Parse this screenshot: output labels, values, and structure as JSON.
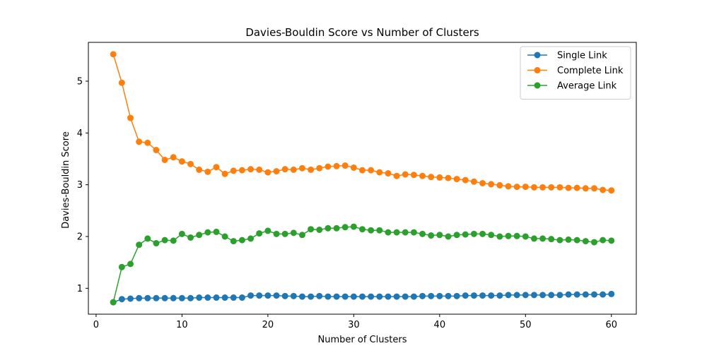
{
  "chart_data": {
    "type": "line",
    "title": "Davies-Bouldin Score vs Number of Clusters",
    "xlabel": "Number of Clusters",
    "ylabel": "Davies-Bouldin Score",
    "xlim": [
      -0.9,
      62.9
    ],
    "ylim": [
      0.5,
      5.75
    ],
    "xticks": [
      0,
      10,
      20,
      30,
      40,
      50,
      60
    ],
    "yticks": [
      1,
      2,
      3,
      4,
      5
    ],
    "grid": false,
    "legend_position": "top-right",
    "x": [
      2,
      3,
      4,
      5,
      6,
      7,
      8,
      9,
      10,
      11,
      12,
      13,
      14,
      15,
      16,
      17,
      18,
      19,
      20,
      21,
      22,
      23,
      24,
      25,
      26,
      27,
      28,
      29,
      30,
      31,
      32,
      33,
      34,
      35,
      36,
      37,
      38,
      39,
      40,
      41,
      42,
      43,
      44,
      45,
      46,
      47,
      48,
      49,
      50,
      51,
      52,
      53,
      54,
      55,
      56,
      57,
      58,
      59,
      60
    ],
    "series": [
      {
        "name": "Single Link",
        "color": "#1f77b4",
        "values": [
          0.73,
          0.79,
          0.8,
          0.81,
          0.81,
          0.81,
          0.81,
          0.81,
          0.81,
          0.81,
          0.82,
          0.82,
          0.82,
          0.82,
          0.82,
          0.82,
          0.86,
          0.86,
          0.86,
          0.86,
          0.85,
          0.85,
          0.84,
          0.84,
          0.85,
          0.84,
          0.84,
          0.84,
          0.84,
          0.84,
          0.84,
          0.84,
          0.84,
          0.84,
          0.84,
          0.84,
          0.85,
          0.85,
          0.85,
          0.85,
          0.85,
          0.86,
          0.86,
          0.86,
          0.86,
          0.86,
          0.87,
          0.87,
          0.87,
          0.87,
          0.87,
          0.87,
          0.87,
          0.88,
          0.88,
          0.88,
          0.88,
          0.88,
          0.89
        ]
      },
      {
        "name": "Complete Link",
        "color": "#ff7f0e",
        "values": [
          5.52,
          4.97,
          4.29,
          3.83,
          3.81,
          3.67,
          3.48,
          3.53,
          3.45,
          3.4,
          3.29,
          3.25,
          3.34,
          3.21,
          3.27,
          3.28,
          3.3,
          3.29,
          3.24,
          3.26,
          3.3,
          3.29,
          3.32,
          3.29,
          3.32,
          3.35,
          3.36,
          3.37,
          3.33,
          3.28,
          3.28,
          3.24,
          3.22,
          3.17,
          3.2,
          3.19,
          3.17,
          3.15,
          3.14,
          3.13,
          3.11,
          3.09,
          3.06,
          3.03,
          3.01,
          2.99,
          2.97,
          2.96,
          2.96,
          2.95,
          2.95,
          2.95,
          2.95,
          2.94,
          2.94,
          2.93,
          2.93,
          2.9,
          2.89
        ]
      },
      {
        "name": "Average Link",
        "color": "#2ca02c",
        "values": [
          0.73,
          1.41,
          1.47,
          1.84,
          1.96,
          1.87,
          1.93,
          1.92,
          2.05,
          1.98,
          2.03,
          2.08,
          2.09,
          2.0,
          1.91,
          1.93,
          1.96,
          2.06,
          2.11,
          2.05,
          2.05,
          2.07,
          2.03,
          2.14,
          2.13,
          2.16,
          2.16,
          2.18,
          2.19,
          2.14,
          2.12,
          2.12,
          2.08,
          2.08,
          2.08,
          2.08,
          2.05,
          2.02,
          2.03,
          2.0,
          2.03,
          2.04,
          2.05,
          2.05,
          2.03,
          2.0,
          2.01,
          2.01,
          2.0,
          1.96,
          1.96,
          1.95,
          1.93,
          1.94,
          1.93,
          1.91,
          1.89,
          1.93,
          1.92
        ]
      }
    ]
  }
}
